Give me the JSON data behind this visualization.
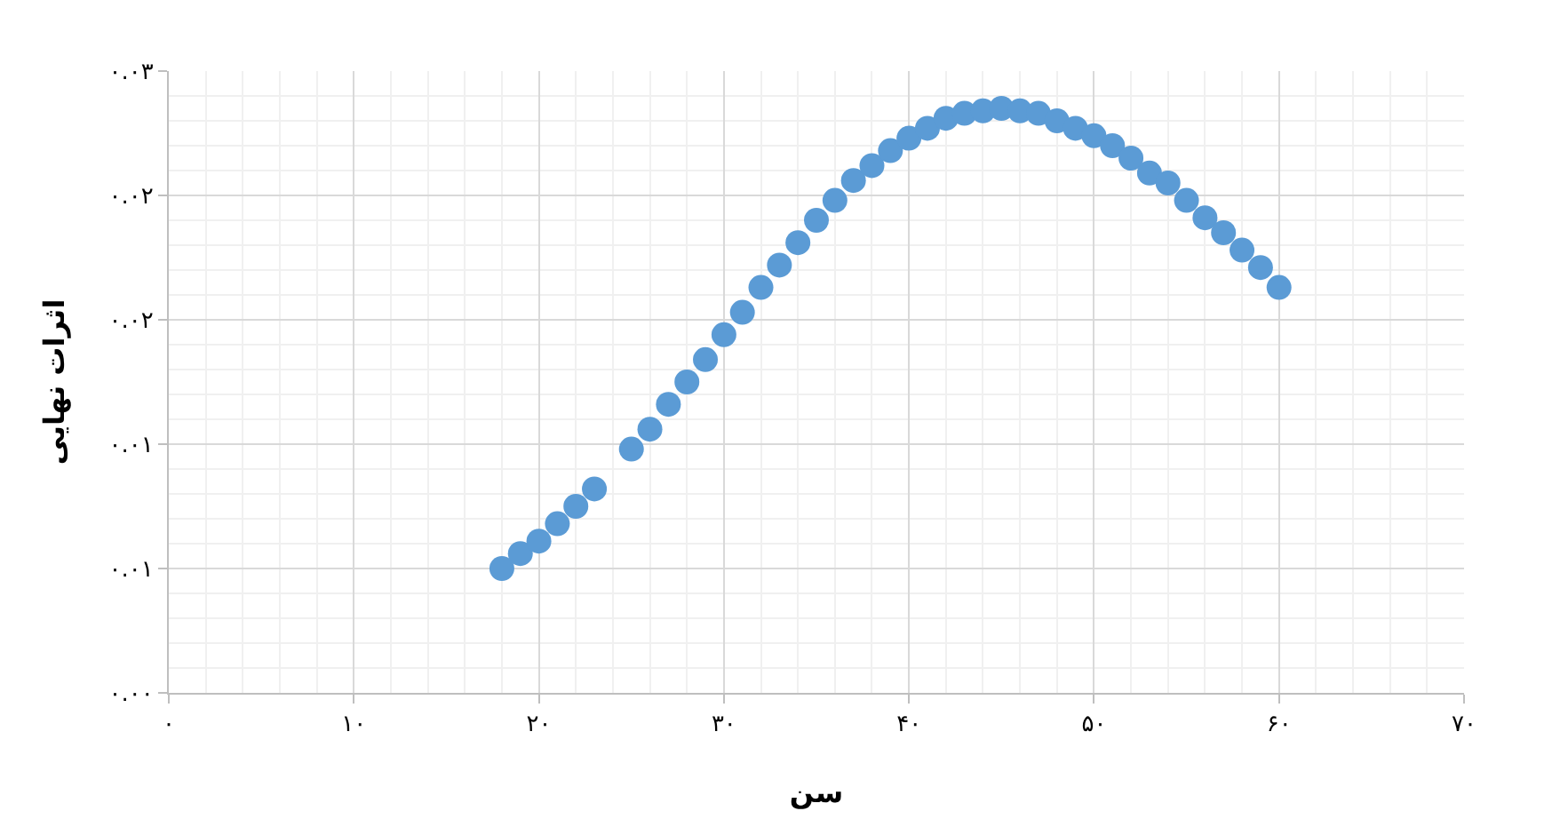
{
  "chart_data": {
    "type": "scatter",
    "xlabel": "سن",
    "ylabel": "اثرات نهایی",
    "x": [
      18,
      19,
      20,
      21,
      22,
      23,
      25,
      26,
      27,
      28,
      29,
      30,
      31,
      32,
      33,
      34,
      35,
      36,
      37,
      38,
      39,
      40,
      41,
      42,
      43,
      44,
      45,
      46,
      47,
      48,
      49,
      50,
      51,
      52,
      53,
      54,
      55,
      56,
      57,
      58,
      59,
      60
    ],
    "series": [
      {
        "color": "#5b9bd5",
        "values": [
          0.005,
          0.0056,
          0.0061,
          0.0068,
          0.0075,
          0.0082,
          0.0098,
          0.0106,
          0.0116,
          0.0125,
          0.0134,
          0.0144,
          0.0153,
          0.0163,
          0.0172,
          0.0181,
          0.019,
          0.0198,
          0.0206,
          0.0212,
          0.0218,
          0.0223,
          0.0227,
          0.0231,
          0.0233,
          0.0234,
          0.0235,
          0.0234,
          0.0233,
          0.023,
          0.0227,
          0.0224,
          0.022,
          0.0215,
          0.0209,
          0.0205,
          0.0198,
          0.0191,
          0.0185,
          0.0178,
          0.0171,
          0.0163
        ]
      }
    ],
    "xlim": [
      0,
      70
    ],
    "ylim": [
      0,
      0.025
    ],
    "xticks": [
      {
        "value": 0,
        "label": "۰"
      },
      {
        "value": 10,
        "label": "۱۰"
      },
      {
        "value": 20,
        "label": "۲۰"
      },
      {
        "value": 30,
        "label": "۳۰"
      },
      {
        "value": 40,
        "label": "۴۰"
      },
      {
        "value": 50,
        "label": "۵۰"
      },
      {
        "value": 60,
        "label": "۶۰"
      },
      {
        "value": 70,
        "label": "۷۰"
      }
    ],
    "yticks": [
      {
        "value": 0,
        "label": "۰.۰۰"
      },
      {
        "value": 0.005,
        "label": "۰.۰۱"
      },
      {
        "value": 0.01,
        "label": "۰.۰۱"
      },
      {
        "value": 0.015,
        "label": "۰.۰۲"
      },
      {
        "value": 0.02,
        "label": "۰.۰۲"
      },
      {
        "value": 0.025,
        "label": "۰.۰۳"
      }
    ],
    "grid": true,
    "marker": "circle"
  }
}
